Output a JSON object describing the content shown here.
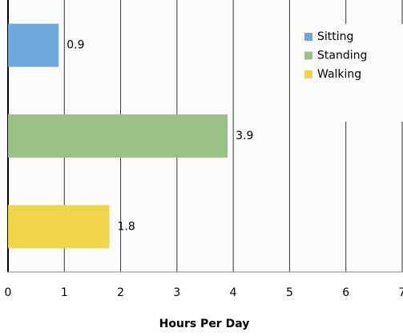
{
  "chart_data": {
    "type": "barh",
    "categories": [
      "Sitting",
      "Standing",
      "Walking"
    ],
    "values": [
      0.9,
      3.9,
      1.8
    ],
    "colors": [
      "#6fa8dc",
      "#9bc286",
      "#f0d54c"
    ],
    "xlabel": "Hours Per Day",
    "xlim": [
      0,
      7
    ],
    "xticks": [
      0,
      1,
      2,
      3,
      4,
      5,
      6,
      7
    ],
    "grid": true
  }
}
